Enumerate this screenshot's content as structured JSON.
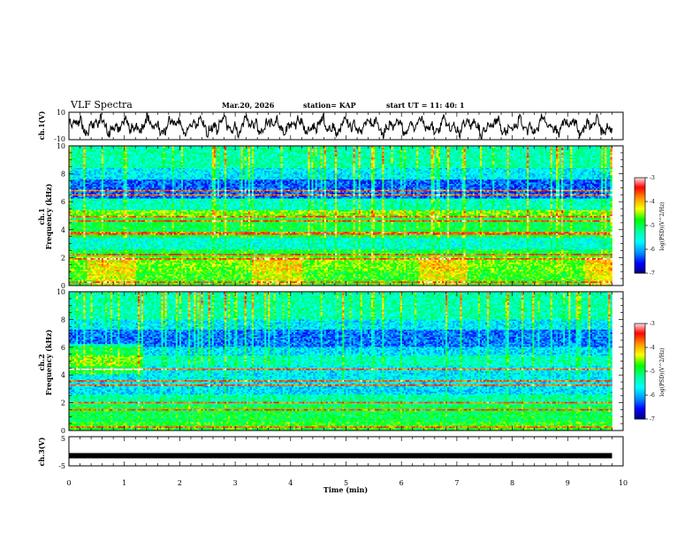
{
  "header": {
    "title": "VLF Spectra",
    "date": "Mar.20, 2026",
    "station": "station= KAP",
    "start": "start  UT =   11: 40: 1"
  },
  "colors": {
    "cmap": [
      "#00007a",
      "#0000ff",
      "#0096ff",
      "#00ffff",
      "#00ff96",
      "#00ff00",
      "#ffff00",
      "#ff9600",
      "#ff0000",
      "#ffffff"
    ]
  },
  "chart_data": [
    {
      "type": "line",
      "id": "ch1",
      "ylabel": "ch.1(V)",
      "ylim": [
        -10,
        10
      ],
      "yticks": [
        "10",
        "-10"
      ],
      "xlim": [
        0,
        10
      ],
      "data_end_min": 9.8
    },
    {
      "type": "heatmap",
      "id": "spec1",
      "ylabel_line1": "ch.1",
      "ylabel_line2": "Frequency  (kHz)",
      "ylim": [
        0,
        10
      ],
      "yticks": [
        "0",
        "2",
        "4",
        "6",
        "8",
        "10"
      ],
      "data_end_min": 9.8,
      "colorbar": {
        "label": "log(PSD)(V^2/Hz)",
        "range": [
          -7,
          -3
        ],
        "ticks": [
          "-3",
          "-4",
          "-5",
          "-6",
          "-7"
        ]
      }
    },
    {
      "type": "heatmap",
      "id": "spec2",
      "ylabel_line1": "ch.2",
      "ylabel_line2": "Frequency  (kHz)",
      "ylim": [
        0,
        10
      ],
      "yticks": [
        "0",
        "2",
        "4",
        "6",
        "8",
        "10"
      ],
      "data_end_min": 9.8,
      "colorbar": {
        "label": "log(PSD)(V^2/Hz)",
        "range": [
          -7,
          -3
        ],
        "ticks": [
          "-3",
          "-4",
          "-5",
          "-6",
          "-7"
        ]
      }
    },
    {
      "type": "line",
      "id": "ch3",
      "ylabel": "ch.3(V)",
      "ylim": [
        -5,
        5
      ],
      "yticks": [
        "5",
        "-5"
      ],
      "constant_value": -1.5,
      "data_end_min": 9.8
    }
  ],
  "xaxis": {
    "label": "Time  (min)",
    "range": [
      0,
      10
    ],
    "ticks": [
      "0",
      "1",
      "2",
      "3",
      "4",
      "5",
      "6",
      "7",
      "8",
      "9",
      "10"
    ]
  }
}
